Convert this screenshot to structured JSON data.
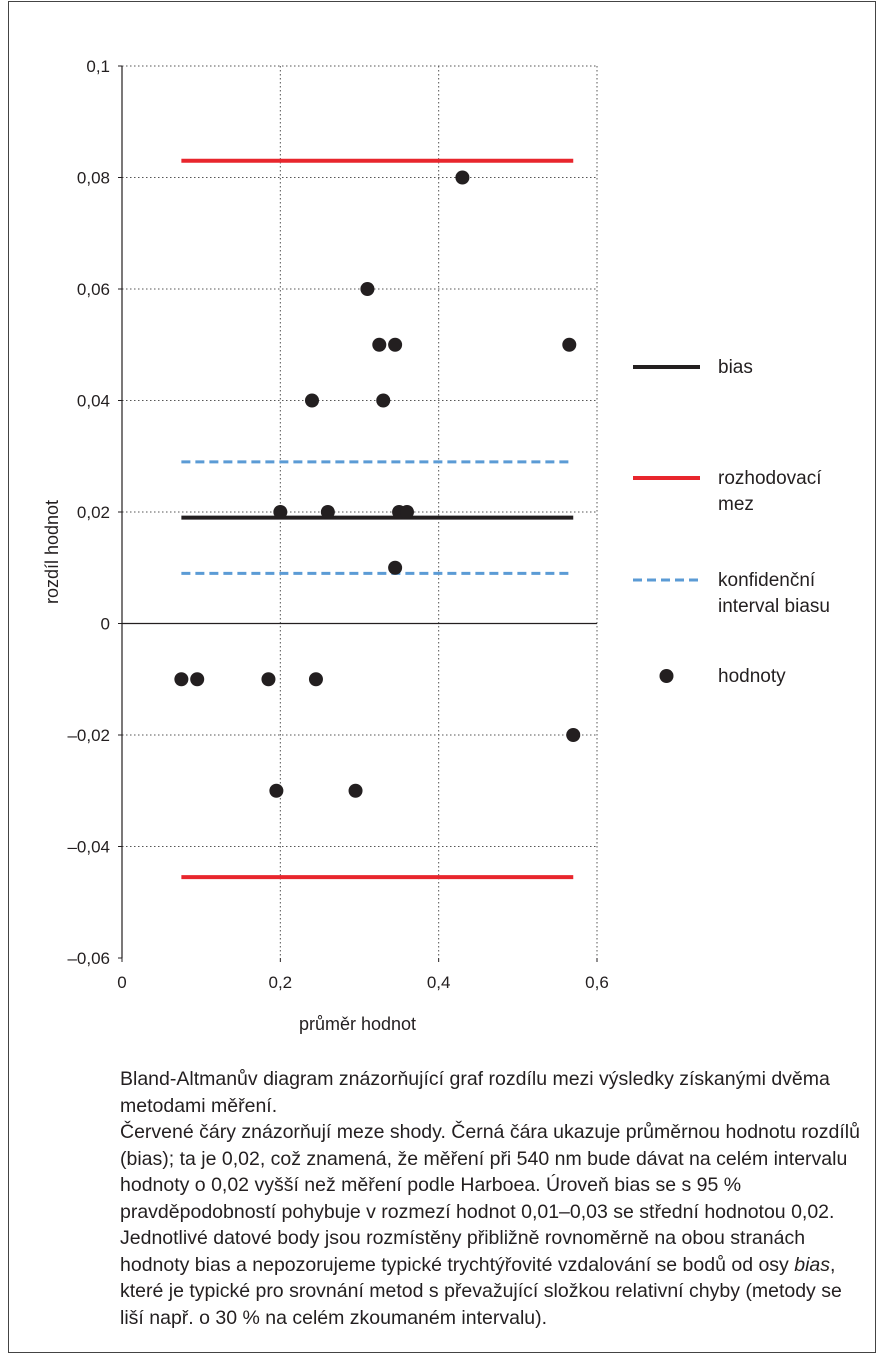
{
  "chart_data": {
    "type": "scatter",
    "xlabel": "průměr hodnot",
    "ylabel": "rozdíl hodnot",
    "xlim": [
      0,
      0.6
    ],
    "ylim": [
      -0.06,
      0.1
    ],
    "x_ticks": [
      {
        "value": 0,
        "label": "0"
      },
      {
        "value": 0.2,
        "label": "0,2"
      },
      {
        "value": 0.4,
        "label": "0,4"
      },
      {
        "value": 0.6,
        "label": "0,6"
      }
    ],
    "y_ticks": [
      {
        "value": -0.06,
        "label": "–0,06"
      },
      {
        "value": -0.04,
        "label": "–0,04"
      },
      {
        "value": -0.02,
        "label": "–0,02"
      },
      {
        "value": 0,
        "label": "0"
      },
      {
        "value": 0.02,
        "label": "0,02"
      },
      {
        "value": 0.04,
        "label": "0,04"
      },
      {
        "value": 0.06,
        "label": "0,06"
      },
      {
        "value": 0.08,
        "label": "0,08"
      },
      {
        "value": 0.1,
        "label": "0,1"
      }
    ],
    "grid": true,
    "legend_position": "right",
    "lines": [
      {
        "key": "bias",
        "y": 0.019,
        "x_range": [
          0.075,
          0.57
        ],
        "color": "#231f20",
        "style": "solid"
      },
      {
        "key": "upper-limit",
        "y": 0.083,
        "x_range": [
          0.075,
          0.57
        ],
        "color": "#e8262d",
        "style": "solid"
      },
      {
        "key": "lower-limit",
        "y": -0.0455,
        "x_range": [
          0.075,
          0.57
        ],
        "color": "#e8262d",
        "style": "solid"
      },
      {
        "key": "ci-upper",
        "y": 0.029,
        "x_range": [
          0.075,
          0.57
        ],
        "color": "#5b9bd5",
        "style": "dashed"
      },
      {
        "key": "ci-lower",
        "y": 0.009,
        "x_range": [
          0.075,
          0.57
        ],
        "color": "#5b9bd5",
        "style": "dashed"
      }
    ],
    "points": [
      {
        "x": 0.43,
        "y": 0.08
      },
      {
        "x": 0.31,
        "y": 0.06
      },
      {
        "x": 0.325,
        "y": 0.05
      },
      {
        "x": 0.345,
        "y": 0.05
      },
      {
        "x": 0.565,
        "y": 0.05
      },
      {
        "x": 0.24,
        "y": 0.04
      },
      {
        "x": 0.33,
        "y": 0.04
      },
      {
        "x": 0.2,
        "y": 0.02
      },
      {
        "x": 0.26,
        "y": 0.02
      },
      {
        "x": 0.35,
        "y": 0.02
      },
      {
        "x": 0.36,
        "y": 0.02
      },
      {
        "x": 0.345,
        "y": 0.01
      },
      {
        "x": 0.075,
        "y": -0.01
      },
      {
        "x": 0.095,
        "y": -0.01
      },
      {
        "x": 0.185,
        "y": -0.01
      },
      {
        "x": 0.245,
        "y": -0.01
      },
      {
        "x": 0.57,
        "y": -0.02
      },
      {
        "x": 0.195,
        "y": -0.03
      },
      {
        "x": 0.295,
        "y": -0.03
      }
    ],
    "point_color": "#231f20",
    "legend": [
      {
        "key": "bias",
        "label_lines": [
          "bias"
        ],
        "symbol": "line",
        "color": "#231f20"
      },
      {
        "key": "limit",
        "label_lines": [
          "rozhodovací",
          "mez"
        ],
        "symbol": "line",
        "color": "#e8262d"
      },
      {
        "key": "ci",
        "label_lines": [
          "konfidenční",
          "interval biasu"
        ],
        "symbol": "dashed",
        "color": "#5b9bd5"
      },
      {
        "key": "values",
        "label_lines": [
          "hodnoty"
        ],
        "symbol": "dot",
        "color": "#231f20"
      }
    ]
  },
  "caption": {
    "paragraph1": "Bland-Altmanův diagram znázorňující graf rozdílu mezi výsledky získanými dvěma metodami měření.",
    "paragraph2": "Červené čáry znázorňují meze shody. Černá čára ukazuje průměrnou hodnotu rozdílů (bias); ta je 0,02, což znamená, že měření při 540 nm bude dávat na celém intervalu hodnoty o 0,02 vyšší než měření podle Harboea. Úroveň bias se s 95 % pravděpodobností pohybuje v rozmezí hodnot 0,01–0,03 se střední hodnotou 0,02.",
    "paragraph3_before": "Jednotlivé datové body jsou rozmístěny přibližně rovnoměrně na obou stranách hodnoty bias a nepozorujeme typické trychtýřovité vzdalování se bodů od osy ",
    "paragraph3_italic": "bias",
    "paragraph3_after": ", které je typické pro srovnání metod s převažující složkou relativní chyby (metody se liší např. o 30 % na celém zkoumaném intervalu)."
  }
}
